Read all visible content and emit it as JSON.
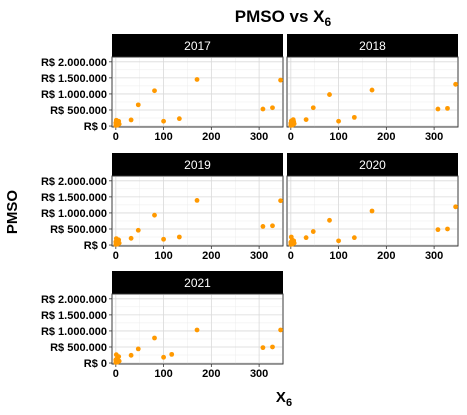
{
  "chart_data": {
    "type": "scatter",
    "title": "PMSO vs X",
    "title_subscript": "6",
    "xlabel": "X",
    "xlabel_subscript": "6",
    "ylabel": "PMSO",
    "xlim": [
      -8,
      350
    ],
    "ylim": [
      -30000,
      2150000
    ],
    "x_ticks": [
      0,
      100,
      200,
      300
    ],
    "y_ticks": [
      0,
      500000,
      1000000,
      1500000,
      2000000
    ],
    "y_tick_labels": [
      "R$ 0",
      "R$ 500.000",
      "R$ 1.000.000",
      "R$ 1.500.000",
      "R$ 2.000.000"
    ],
    "grid": true,
    "point_color": "#FF9900",
    "strip_color": "#000000",
    "panels": [
      {
        "name": "2017",
        "x": [
          0,
          0,
          1,
          2,
          3,
          4,
          5,
          6,
          7,
          32,
          47,
          81,
          100,
          133,
          170,
          308,
          328,
          345
        ],
        "y": [
          20000,
          100000,
          180000,
          50000,
          130000,
          30000,
          80000,
          150000,
          60000,
          190000,
          660000,
          1100000,
          150000,
          230000,
          1450000,
          530000,
          570000,
          1430000
        ]
      },
      {
        "name": "2018",
        "x": [
          0,
          0,
          1,
          2,
          3,
          4,
          5,
          6,
          7,
          32,
          47,
          81,
          100,
          133,
          170,
          308,
          328,
          345
        ],
        "y": [
          20000,
          90000,
          160000,
          50000,
          120000,
          30000,
          200000,
          140000,
          70000,
          200000,
          570000,
          980000,
          150000,
          270000,
          1120000,
          530000,
          550000,
          1300000
        ]
      },
      {
        "name": "2019",
        "x": [
          0,
          0,
          1,
          2,
          3,
          4,
          5,
          6,
          7,
          32,
          47,
          81,
          100,
          133,
          170,
          308,
          328,
          345
        ],
        "y": [
          20000,
          100000,
          200000,
          50000,
          140000,
          30000,
          80000,
          160000,
          60000,
          210000,
          460000,
          930000,
          180000,
          250000,
          1390000,
          580000,
          600000,
          1380000
        ]
      },
      {
        "name": "2020",
        "x": [
          0,
          0,
          1,
          2,
          3,
          4,
          5,
          6,
          7,
          32,
          47,
          81,
          100,
          133,
          170,
          308,
          328,
          345
        ],
        "y": [
          20000,
          90000,
          250000,
          50000,
          160000,
          30000,
          80000,
          130000,
          60000,
          230000,
          420000,
          770000,
          130000,
          230000,
          1060000,
          480000,
          500000,
          1190000
        ]
      },
      {
        "name": "2021",
        "x": [
          0,
          0,
          1,
          2,
          3,
          4,
          5,
          6,
          7,
          32,
          47,
          81,
          100,
          117,
          170,
          308,
          328,
          345
        ],
        "y": [
          20000,
          100000,
          260000,
          50000,
          150000,
          30000,
          80000,
          200000,
          60000,
          240000,
          440000,
          780000,
          180000,
          270000,
          1030000,
          480000,
          500000,
          1030000
        ]
      }
    ]
  }
}
